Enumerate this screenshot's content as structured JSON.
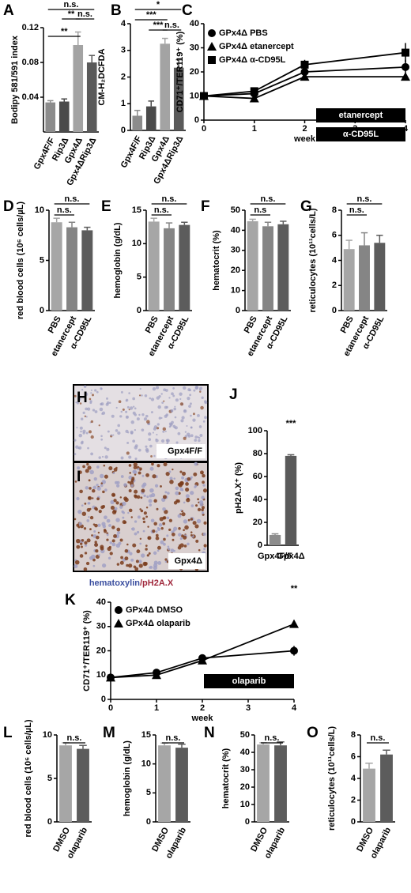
{
  "chart_data": [
    {
      "panel": "A",
      "type": "bar",
      "ylabel": "Bodipy 581/591 index",
      "categories": [
        "Gpx4F/F",
        "Rip3Δ",
        "Gpx4Δ",
        "Gpx4ΔRip3Δ"
      ],
      "values": [
        0.034,
        0.035,
        0.1,
        0.08
      ],
      "errors": [
        0.002,
        0.003,
        0.015,
        0.008
      ],
      "colors": [
        "#8c8c8c",
        "#4a4a4a",
        "#a3a3a3",
        "#5a5a5a"
      ],
      "ylim": [
        0,
        0.12
      ],
      "yticks": [
        0.04,
        0.08,
        0.12
      ],
      "annotations": [
        "n.s.",
        "**",
        "n.s.",
        "**"
      ]
    },
    {
      "panel": "B",
      "type": "bar",
      "ylabel": "CM-H₂DCFDA",
      "categories": [
        "Gpx4F/F",
        "Rip3Δ",
        "Gpx4Δ",
        "Gpx4ΔRip3Δ"
      ],
      "values": [
        0.55,
        0.9,
        3.25,
        2.35
      ],
      "errors": [
        0.2,
        0.2,
        0.2,
        0.3
      ],
      "colors": [
        "#8c8c8c",
        "#4a4a4a",
        "#a3a3a3",
        "#5a5a5a"
      ],
      "ylim": [
        0,
        4
      ],
      "yticks": [
        0,
        1,
        2,
        3,
        4
      ],
      "annotations": [
        "*",
        "***",
        "***",
        "n.s."
      ]
    },
    {
      "panel": "C",
      "type": "line",
      "ylabel": "CD71⁺/TER119⁺ (%)",
      "xlabel": "week",
      "x": [
        0,
        1,
        2,
        4
      ],
      "xlim": [
        0,
        4
      ],
      "xticks": [
        0,
        1,
        2,
        3,
        4
      ],
      "ylim": [
        0,
        40
      ],
      "yticks": [
        0,
        10,
        20,
        30,
        40
      ],
      "series": [
        {
          "name": "GPx4Δ PBS",
          "marker": "circle",
          "color": "#000000",
          "values": [
            10,
            11,
            20,
            22
          ],
          "errors": [
            1,
            1,
            2,
            3
          ]
        },
        {
          "name": "GPx4Δ etanercept",
          "marker": "triangle",
          "color": "#000000",
          "values": [
            10,
            9,
            18,
            18
          ],
          "errors": [
            1,
            1,
            1,
            1
          ]
        },
        {
          "name": "GPx4Δ α-CD95L",
          "marker": "square",
          "color": "#000000",
          "values": [
            10,
            12,
            23,
            28
          ],
          "errors": [
            1,
            1,
            2,
            4
          ]
        }
      ],
      "treatments": [
        "etanercept",
        "α-CD95L"
      ],
      "annotations": []
    },
    {
      "panel": "D",
      "type": "bar",
      "ylabel": "red blood cells (10⁶ cells/µL)",
      "categories": [
        "PBS",
        "etanercept",
        "α-CD95L"
      ],
      "values": [
        8.8,
        8.3,
        8.0
      ],
      "errors": [
        0.4,
        0.5,
        0.3
      ],
      "colors": [
        "#a6a6a6",
        "#858585",
        "#5c5c5c"
      ],
      "ylim": [
        0,
        10
      ],
      "yticks": [
        0,
        5,
        10
      ],
      "annotations": [
        "n.s.",
        "n.s."
      ]
    },
    {
      "panel": "E",
      "type": "bar",
      "ylabel": "hemoglobin (g/dL)",
      "categories": [
        "PBS",
        "etanercept",
        "α-CD95L"
      ],
      "values": [
        13.3,
        12.3,
        12.8
      ],
      "errors": [
        0.5,
        0.8,
        0.4
      ],
      "colors": [
        "#a6a6a6",
        "#858585",
        "#5c5c5c"
      ],
      "ylim": [
        0,
        15
      ],
      "yticks": [
        0,
        5,
        10,
        15
      ],
      "annotations": [
        "n.s.",
        "n.s."
      ]
    },
    {
      "panel": "F",
      "type": "bar",
      "ylabel": "hematocrit (%)",
      "categories": [
        "PBS",
        "etanercept",
        "α-CD95L"
      ],
      "values": [
        44.5,
        42,
        43
      ],
      "errors": [
        1,
        2,
        1.5
      ],
      "colors": [
        "#a6a6a6",
        "#858585",
        "#5c5c5c"
      ],
      "ylim": [
        0,
        50
      ],
      "yticks": [
        0,
        10,
        20,
        30,
        40,
        50
      ],
      "annotations": [
        "n.s.",
        "n.s"
      ]
    },
    {
      "panel": "G",
      "type": "bar",
      "ylabel": "reticulocytes (10¹¹cells/L)",
      "categories": [
        "PBS",
        "etanercept",
        "α-CD95L"
      ],
      "values": [
        4.9,
        5.2,
        5.4
      ],
      "errors": [
        0.7,
        1.0,
        0.6
      ],
      "colors": [
        "#a6a6a6",
        "#858585",
        "#5c5c5c"
      ],
      "ylim": [
        0,
        8
      ],
      "yticks": [
        0,
        2,
        4,
        6,
        8
      ],
      "annotations": [
        "n.s.",
        "n.s."
      ]
    },
    {
      "panel": "J",
      "type": "bar",
      "ylabel": "pH2A.X⁺ (%)",
      "categories": [
        "Gpx4F/F",
        "Gpx4Δ"
      ],
      "values": [
        9,
        78
      ],
      "errors": [
        1,
        1
      ],
      "colors": [
        "#8c8c8c",
        "#5a5a5a"
      ],
      "ylim": [
        0,
        100
      ],
      "yticks": [
        0,
        20,
        40,
        60,
        80,
        100
      ],
      "annotations": [
        "***"
      ]
    },
    {
      "panel": "K",
      "type": "line",
      "ylabel": "CD71⁺/TER119⁺ (%)",
      "xlabel": "week",
      "x": [
        0,
        1,
        2,
        4
      ],
      "xlim": [
        0,
        4
      ],
      "xticks": [
        0,
        1,
        2,
        3,
        4
      ],
      "ylim": [
        0,
        40
      ],
      "yticks": [
        0,
        10,
        20,
        30,
        40
      ],
      "series": [
        {
          "name": "GPx4Δ DMSO",
          "marker": "circle",
          "color": "#000000",
          "values": [
            9,
            11,
            17,
            20
          ],
          "errors": [
            1,
            1,
            1,
            2
          ]
        },
        {
          "name": "GPx4Δ olaparib",
          "marker": "triangle",
          "color": "#000000",
          "values": [
            9,
            10,
            16,
            31
          ],
          "errors": [
            1,
            1,
            1,
            1
          ]
        }
      ],
      "treatments": [
        "olaparib"
      ],
      "annotations": [
        "**"
      ]
    },
    {
      "panel": "L",
      "type": "bar",
      "ylabel": "red blood cells (10⁶ cells/µL)",
      "categories": [
        "DMSO",
        "olaparib"
      ],
      "values": [
        8.8,
        8.4
      ],
      "errors": [
        0.3,
        0.4
      ],
      "colors": [
        "#a6a6a6",
        "#5c5c5c"
      ],
      "ylim": [
        0,
        10
      ],
      "yticks": [
        0,
        5,
        10
      ],
      "annotations": [
        "n.s."
      ]
    },
    {
      "panel": "M",
      "type": "bar",
      "ylabel": "hemoglobin (g/dL)",
      "categories": [
        "DMSO",
        "olaparib"
      ],
      "values": [
        13.2,
        12.8
      ],
      "errors": [
        0.4,
        0.6
      ],
      "colors": [
        "#a6a6a6",
        "#5c5c5c"
      ],
      "ylim": [
        0,
        15
      ],
      "yticks": [
        0,
        5,
        10,
        15
      ],
      "annotations": [
        "n.s."
      ]
    },
    {
      "panel": "N",
      "type": "bar",
      "ylabel": "hematocrit (%)",
      "categories": [
        "DMSO",
        "olaparib"
      ],
      "values": [
        44.5,
        44
      ],
      "errors": [
        1,
        2
      ],
      "colors": [
        "#a6a6a6",
        "#5c5c5c"
      ],
      "ylim": [
        0,
        50
      ],
      "yticks": [
        0,
        10,
        20,
        30,
        40,
        50
      ],
      "annotations": [
        "n.s."
      ]
    },
    {
      "panel": "O",
      "type": "bar",
      "ylabel": "reticulocytes (10¹¹cells/L)",
      "categories": [
        "DMSO",
        "olaparib"
      ],
      "values": [
        4.9,
        6.2
      ],
      "errors": [
        0.5,
        0.4
      ],
      "colors": [
        "#a6a6a6",
        "#5c5c5c"
      ],
      "ylim": [
        0,
        8
      ],
      "yticks": [
        0,
        2,
        4,
        6,
        8
      ],
      "annotations": [
        "n.s."
      ]
    }
  ],
  "micrographs": {
    "panels": [
      {
        "panel": "H",
        "label": "Gpx4F/F"
      },
      {
        "panel": "I",
        "label": "Gpx4Δ"
      }
    ],
    "stain": [
      "hematoxylin",
      "/pH2A.X"
    ]
  }
}
